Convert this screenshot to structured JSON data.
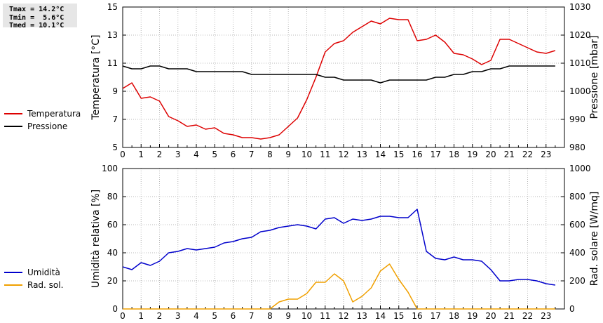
{
  "stats": {
    "tmax": "Tmax = 14.2°C",
    "tmin": "Tmin =  5.6°C",
    "tmed": "Tmed = 10.1°C"
  },
  "legend_top": [
    {
      "label": "Temperatura",
      "color": "#dd0000"
    },
    {
      "label": "Pressione",
      "color": "#000000"
    }
  ],
  "legend_bottom": [
    {
      "label": "Umidità",
      "color": "#0000cc"
    },
    {
      "label": "Rad. sol.",
      "color": "#f0a000"
    }
  ],
  "chart_data": [
    {
      "type": "line",
      "xlabel": "",
      "x_ticks": [
        "0",
        "1",
        "2",
        "3",
        "4",
        "5",
        "6",
        "7",
        "8",
        "9",
        "10",
        "11",
        "12",
        "13",
        "14",
        "15",
        "16",
        "17",
        "18",
        "19",
        "20",
        "21",
        "22",
        "23"
      ],
      "xlim": [
        0,
        24
      ],
      "grid": true,
      "ylabel": "Temperatura [°C]",
      "ylim": [
        5,
        15
      ],
      "y_ticks": [
        "5",
        "7",
        "9",
        "11",
        "13",
        "15"
      ],
      "y2label": "Pressione [mbar]",
      "y2lim": [
        980,
        1030
      ],
      "y2_ticks": [
        "980",
        "990",
        "1000",
        "1010",
        "1020",
        "1030"
      ],
      "series": [
        {
          "name": "Temperatura",
          "axis": "left",
          "color": "#dd0000",
          "x": [
            0,
            0.5,
            1,
            1.5,
            2,
            2.5,
            3,
            3.5,
            4,
            4.5,
            5,
            5.5,
            6,
            6.5,
            7,
            7.5,
            8,
            8.5,
            9,
            9.5,
            10,
            10.5,
            11,
            11.5,
            12,
            12.5,
            13,
            13.5,
            14,
            14.5,
            15,
            15.5,
            16,
            16.5,
            17,
            17.5,
            18,
            18.5,
            19,
            19.5,
            20,
            20.5,
            21,
            21.5,
            22,
            22.5,
            23,
            23.5
          ],
          "values": [
            9.2,
            9.6,
            8.5,
            8.6,
            8.3,
            7.2,
            6.9,
            6.5,
            6.6,
            6.3,
            6.4,
            6.0,
            5.9,
            5.7,
            5.7,
            5.6,
            5.7,
            5.9,
            6.5,
            7.1,
            8.4,
            10.0,
            11.8,
            12.4,
            12.6,
            13.2,
            13.6,
            14.0,
            13.8,
            14.2,
            14.1,
            14.1,
            12.6,
            12.7,
            13.0,
            12.5,
            11.7,
            11.6,
            11.3,
            10.9,
            11.2,
            12.7,
            12.7,
            12.4,
            12.1,
            11.8,
            11.7,
            11.9
          ]
        },
        {
          "name": "Pressione",
          "axis": "right",
          "color": "#000000",
          "x": [
            0,
            0.5,
            1,
            1.5,
            2,
            2.5,
            3,
            3.5,
            4,
            4.5,
            5,
            5.5,
            6,
            6.5,
            7,
            7.5,
            8,
            8.5,
            9,
            9.5,
            10,
            10.5,
            11,
            11.5,
            12,
            12.5,
            13,
            13.5,
            14,
            14.5,
            15,
            15.5,
            16,
            16.5,
            17,
            17.5,
            18,
            18.5,
            19,
            19.5,
            20,
            20.5,
            21,
            21.5,
            22,
            22.5,
            23,
            23.5
          ],
          "values": [
            1009,
            1008,
            1008,
            1009,
            1009,
            1008,
            1008,
            1008,
            1007,
            1007,
            1007,
            1007,
            1007,
            1007,
            1006,
            1006,
            1006,
            1006,
            1006,
            1006,
            1006,
            1006,
            1005,
            1005,
            1004,
            1004,
            1004,
            1004,
            1003,
            1004,
            1004,
            1004,
            1004,
            1004,
            1005,
            1005,
            1006,
            1006,
            1007,
            1007,
            1008,
            1008,
            1009,
            1009,
            1009,
            1009,
            1009,
            1009
          ]
        }
      ]
    },
    {
      "type": "line",
      "xlabel": "",
      "x_ticks": [
        "0",
        "1",
        "2",
        "3",
        "4",
        "5",
        "6",
        "7",
        "8",
        "9",
        "10",
        "11",
        "12",
        "13",
        "14",
        "15",
        "16",
        "17",
        "18",
        "19",
        "20",
        "21",
        "22",
        "23"
      ],
      "xlim": [
        0,
        24
      ],
      "grid": true,
      "ylabel": "Umidità relativa [%]",
      "ylim": [
        0,
        100
      ],
      "y_ticks": [
        "0",
        "20",
        "40",
        "60",
        "80",
        "100"
      ],
      "y2label": "Rad. solare [W/mq]",
      "y2lim": [
        0,
        1000
      ],
      "y2_ticks": [
        "0",
        "200",
        "400",
        "600",
        "800",
        "1000"
      ],
      "series": [
        {
          "name": "Umidità",
          "axis": "left",
          "color": "#0000cc",
          "x": [
            0,
            0.5,
            1,
            1.5,
            2,
            2.5,
            3,
            3.5,
            4,
            4.5,
            5,
            5.5,
            6,
            6.5,
            7,
            7.5,
            8,
            8.5,
            9,
            9.5,
            10,
            10.5,
            11,
            11.5,
            12,
            12.5,
            13,
            13.5,
            14,
            14.5,
            15,
            15.5,
            16,
            16.5,
            17,
            17.5,
            18,
            18.5,
            19,
            19.5,
            20,
            20.5,
            21,
            21.5,
            22,
            22.5,
            23,
            23.5
          ],
          "values": [
            30,
            28,
            33,
            31,
            34,
            40,
            41,
            43,
            42,
            43,
            44,
            47,
            48,
            50,
            51,
            55,
            56,
            58,
            59,
            60,
            59,
            57,
            64,
            65,
            61,
            64,
            63,
            64,
            66,
            66,
            65,
            65,
            71,
            41,
            36,
            35,
            37,
            35,
            35,
            34,
            28,
            20,
            20,
            21,
            21,
            20,
            18,
            17
          ]
        },
        {
          "name": "Rad. sol.",
          "axis": "right",
          "color": "#f0a000",
          "x": [
            0,
            0.5,
            1,
            1.5,
            2,
            2.5,
            3,
            3.5,
            4,
            4.5,
            5,
            5.5,
            6,
            6.5,
            7,
            7.5,
            8,
            8.5,
            9,
            9.5,
            10,
            10.5,
            11,
            11.5,
            12,
            12.5,
            13,
            13.5,
            14,
            14.5,
            15,
            15.5,
            16,
            16.5,
            17,
            17.5,
            18,
            18.5,
            19,
            19.5,
            20,
            20.5,
            21,
            21.5,
            22,
            22.5,
            23,
            23.5
          ],
          "values": [
            0,
            0,
            0,
            0,
            0,
            0,
            0,
            0,
            0,
            0,
            0,
            0,
            0,
            0,
            0,
            0,
            0,
            50,
            70,
            70,
            110,
            190,
            190,
            250,
            200,
            50,
            90,
            150,
            270,
            320,
            210,
            120,
            0,
            0,
            0,
            0,
            0,
            0,
            0,
            0,
            0,
            0,
            0,
            0,
            0,
            0,
            0,
            0
          ]
        }
      ]
    }
  ]
}
